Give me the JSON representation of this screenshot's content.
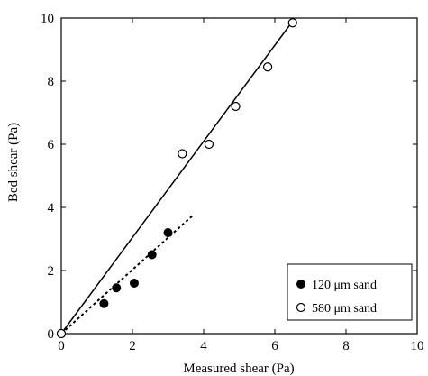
{
  "chart_data": {
    "type": "scatter",
    "xlabel": "Measured shear (Pa)",
    "ylabel": "Bed shear (Pa)",
    "xlim": [
      0,
      10
    ],
    "ylim": [
      0,
      10
    ],
    "xticks": [
      "0",
      "2",
      "4",
      "6",
      "8",
      "10"
    ],
    "yticks": [
      "0",
      "2",
      "4",
      "6",
      "8",
      "10"
    ],
    "grid": false,
    "legend_position": "bottom-right",
    "series": [
      {
        "name": "120 μm sand",
        "marker": "filled-circle",
        "color": "#000000",
        "x": [
          0,
          1.2,
          1.55,
          2.05,
          2.55,
          3.0
        ],
        "y": [
          0,
          0.95,
          1.45,
          1.6,
          2.5,
          3.2
        ],
        "fit": {
          "style": "dotted",
          "x": [
            0,
            3.7
          ],
          "y": [
            0,
            3.75
          ]
        }
      },
      {
        "name": "580 μm sand",
        "marker": "open-circle",
        "color": "#000000",
        "x": [
          0,
          3.4,
          4.15,
          4.9,
          5.8,
          6.5
        ],
        "y": [
          0,
          5.7,
          6.0,
          7.2,
          8.45,
          9.85
        ],
        "fit": {
          "style": "solid",
          "x": [
            0,
            6.5
          ],
          "y": [
            0,
            9.9
          ]
        }
      }
    ]
  }
}
